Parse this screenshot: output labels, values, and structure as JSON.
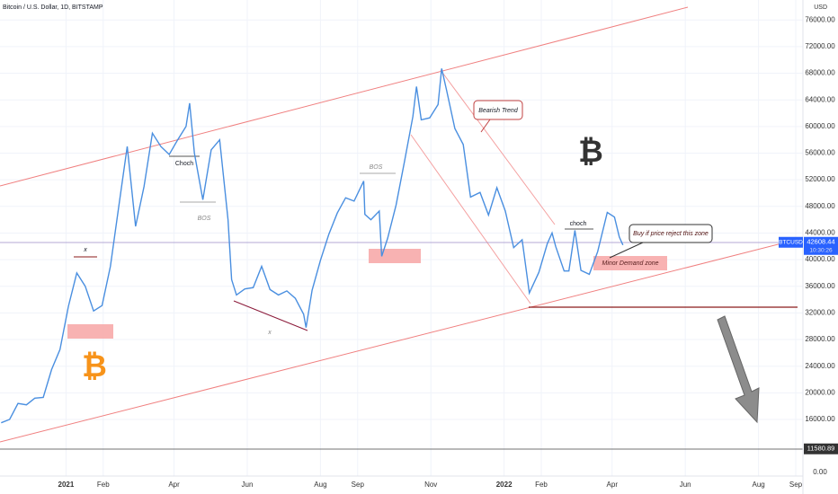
{
  "chart_data": {
    "type": "line",
    "title": "Bitcoin / U.S. Dollar, 1D, BITSTAMP",
    "currency": "USD",
    "symbol": "BTCUSD",
    "last_price": {
      "value": 42608.44,
      "label": "42608.44"
    },
    "countdown": "10:30:26",
    "bottom_label": "0.00",
    "level_line": {
      "value": 11580.89,
      "label": "11580.89"
    },
    "color": "#4a8fe0",
    "xlim": [
      "2020-11-07",
      "2022-09-07"
    ],
    "ylim": [
      7500,
      79000
    ],
    "xticks": [
      {
        "value": "2021-01",
        "label": "2021"
      },
      {
        "value": "2021-02",
        "label": "Feb"
      },
      {
        "value": "2021-04",
        "label": "Apr"
      },
      {
        "value": "2021-06",
        "label": "Jun"
      },
      {
        "value": "2021-08",
        "label": "Aug"
      },
      {
        "value": "2021-09",
        "label": "Sep"
      },
      {
        "value": "2021-11",
        "label": "Nov"
      },
      {
        "value": "2022-01",
        "label": "2022"
      },
      {
        "value": "2022-02",
        "label": "Feb"
      },
      {
        "value": "2022-04",
        "label": "Apr"
      },
      {
        "value": "2022-06",
        "label": "Jun"
      },
      {
        "value": "2022-08",
        "label": "Aug"
      },
      {
        "value": "2022-09",
        "label": "Sep"
      }
    ],
    "yticks": [
      {
        "value": 16000,
        "label": "16000.00"
      },
      {
        "value": 20000,
        "label": "20000.00"
      },
      {
        "value": 24000,
        "label": "24000.00"
      },
      {
        "value": 28000,
        "label": "28000.00"
      },
      {
        "value": 32000,
        "label": "32000.00"
      },
      {
        "value": 36000,
        "label": "36000.00"
      },
      {
        "value": 40000,
        "label": "40000.00"
      },
      {
        "value": 44000,
        "label": "44000.00"
      },
      {
        "value": 48000,
        "label": "48000.00"
      },
      {
        "value": 52000,
        "label": "52000.00"
      },
      {
        "value": 56000,
        "label": "56000.00"
      },
      {
        "value": 60000,
        "label": "60000.00"
      },
      {
        "value": 64000,
        "label": "64000.00"
      },
      {
        "value": 68000,
        "label": "68000.00"
      },
      {
        "value": 72000,
        "label": "72000.00"
      },
      {
        "value": 76000,
        "label": "76000.00"
      }
    ],
    "x": [
      "2020-11-08",
      "2020-11-15",
      "2020-11-22",
      "2020-11-29",
      "2020-12-06",
      "2020-12-13",
      "2020-12-20",
      "2020-12-27",
      "2021-01-03",
      "2021-01-10",
      "2021-01-17",
      "2021-01-24",
      "2021-01-31",
      "2021-02-07",
      "2021-02-14",
      "2021-02-21",
      "2021-02-28",
      "2021-03-07",
      "2021-03-14",
      "2021-03-21",
      "2021-03-28",
      "2021-04-04",
      "2021-04-11",
      "2021-04-14",
      "2021-04-18",
      "2021-04-25",
      "2021-05-02",
      "2021-05-09",
      "2021-05-16",
      "2021-05-19",
      "2021-05-23",
      "2021-05-30",
      "2021-06-06",
      "2021-06-13",
      "2021-06-20",
      "2021-06-27",
      "2021-07-04",
      "2021-07-11",
      "2021-07-18",
      "2021-07-20",
      "2021-07-25",
      "2021-08-01",
      "2021-08-08",
      "2021-08-15",
      "2021-08-22",
      "2021-08-29",
      "2021-09-06",
      "2021-09-07",
      "2021-09-12",
      "2021-09-19",
      "2021-09-21",
      "2021-09-26",
      "2021-10-03",
      "2021-10-10",
      "2021-10-17",
      "2021-10-20",
      "2021-10-24",
      "2021-10-31",
      "2021-11-07",
      "2021-11-10",
      "2021-11-14",
      "2021-11-21",
      "2021-11-28",
      "2021-12-04",
      "2021-12-12",
      "2021-12-19",
      "2021-12-26",
      "2022-01-02",
      "2022-01-09",
      "2022-01-16",
      "2022-01-22",
      "2022-01-30",
      "2022-02-06",
      "2022-02-10",
      "2022-02-13",
      "2022-02-20",
      "2022-02-24",
      "2022-03-01",
      "2022-03-06",
      "2022-03-13",
      "2022-03-20",
      "2022-03-28",
      "2022-04-03",
      "2022-04-07",
      "2022-04-10"
    ],
    "values": [
      15500,
      16000,
      18400,
      18200,
      19200,
      19300,
      23500,
      26500,
      33000,
      38000,
      36000,
      32300,
      33100,
      39000,
      48000,
      57000,
      45000,
      51000,
      59000,
      57000,
      55800,
      58000,
      60000,
      63500,
      56000,
      49000,
      56500,
      58000,
      46000,
      37000,
      34700,
      35600,
      35800,
      39000,
      35500,
      34700,
      35300,
      34200,
      31800,
      29800,
      35400,
      39900,
      43800,
      47000,
      49300,
      48800,
      51800,
      46800,
      46000,
      47300,
      40500,
      43200,
      48200,
      54700,
      61500,
      66000,
      61000,
      61300,
      63300,
      68700,
      65500,
      59700,
      57300,
      49400,
      50100,
      46700,
      50800,
      47300,
      41800,
      43000,
      35000,
      38100,
      42400,
      44000,
      42000,
      38300,
      38300,
      44400,
      38400,
      37800,
      41200,
      47100,
      46400,
      43400,
      42200
    ],
    "annotations": [
      "x",
      "Choch",
      "BOS",
      "x",
      "BOS",
      "Bearish Trend",
      "choch",
      "Buy if price reject this zone",
      "Minor Demand zone"
    ]
  }
}
